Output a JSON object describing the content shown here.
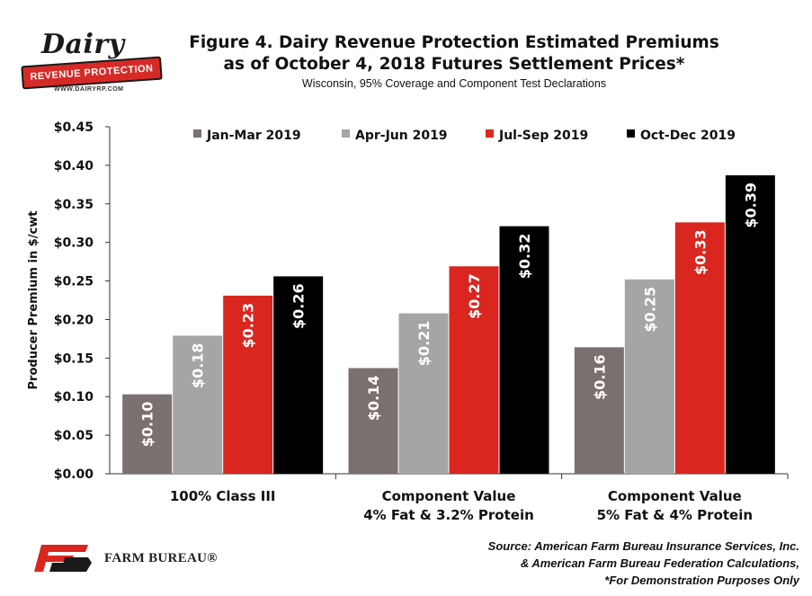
{
  "logo": {
    "word": "Dairy",
    "banner": "REVENUE PROTECTION",
    "url": "WWW.DAIRYRP.COM"
  },
  "title": {
    "line1": "Figure 4. Dairy Revenue Protection Estimated Premiums",
    "line2": "as of October 4, 2018 Futures Settlement Prices*",
    "subtitle": "Wisconsin, 95% Coverage and Component Test Declarations"
  },
  "chart_data": {
    "type": "bar",
    "ylabel": "Producer Premium in $/cwt",
    "ylim": [
      0,
      0.45
    ],
    "yticks": [
      "$0.00",
      "$0.05",
      "$0.10",
      "$0.15",
      "$0.20",
      "$0.25",
      "$0.30",
      "$0.35",
      "$0.40",
      "$0.45"
    ],
    "grid": false,
    "legend_position": "top",
    "categories": [
      [
        "100% Class III"
      ],
      [
        "Component Value",
        "4% Fat & 3.2% Protein"
      ],
      [
        "Component Value",
        "5% Fat & 4% Protein"
      ]
    ],
    "series": [
      {
        "name": "Jan-Mar 2019",
        "color": "#7a7070",
        "values": [
          0.103,
          0.137,
          0.164
        ],
        "labels": [
          "$0.10",
          "$0.14",
          "$0.16"
        ]
      },
      {
        "name": "Apr-Jun 2019",
        "color": "#a5a5a5",
        "values": [
          0.179,
          0.208,
          0.252
        ],
        "labels": [
          "$0.18",
          "$0.21",
          "$0.25"
        ]
      },
      {
        "name": "Jul-Sep 2019",
        "color": "#d9261f",
        "values": [
          0.231,
          0.269,
          0.326
        ],
        "labels": [
          "$0.23",
          "$0.27",
          "$0.33"
        ]
      },
      {
        "name": "Oct-Dec 2019",
        "color": "#000000",
        "values": [
          0.256,
          0.321,
          0.387
        ],
        "labels": [
          "$0.26",
          "$0.32",
          "$0.39"
        ]
      }
    ]
  },
  "footer": {
    "org": "FARM BUREAU®",
    "source_lines": [
      "Source: American Farm Bureau Insurance Services, Inc.",
      "& American Farm Bureau Federation Calculations,",
      "*For Demonstration Purposes Only"
    ]
  }
}
